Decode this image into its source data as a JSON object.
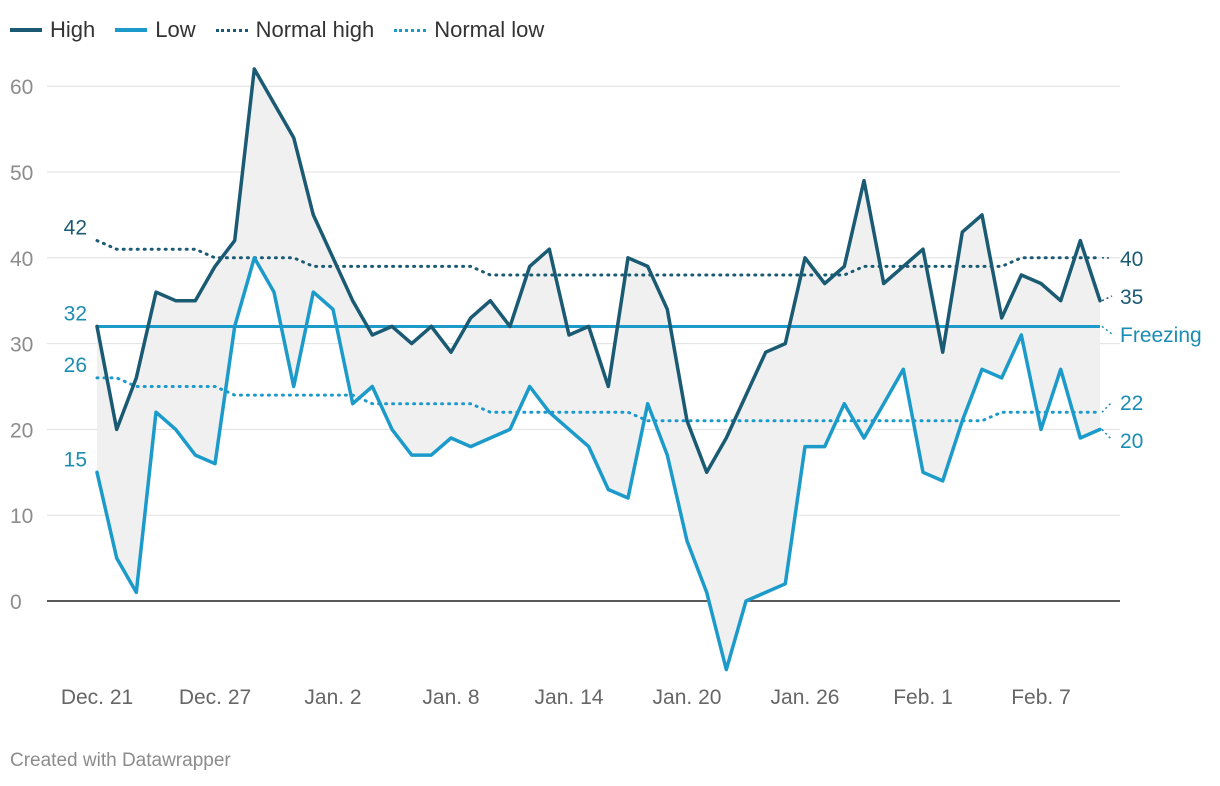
{
  "legend": [
    {
      "name": "High",
      "color": "#1a5a73",
      "style": "solid"
    },
    {
      "name": "Low",
      "color": "#1c9bcb",
      "style": "solid"
    },
    {
      "name": "Normal high",
      "color": "#1a5a73",
      "style": "dotted"
    },
    {
      "name": "Normal low",
      "color": "#1c9bcb",
      "style": "dotted"
    }
  ],
  "credit": "Created with Datawrapper",
  "chart_data": {
    "type": "line",
    "title": "",
    "xlabel": "",
    "ylabel": "",
    "ylim": [
      -8,
      63
    ],
    "yticks": [
      0,
      10,
      20,
      30,
      40,
      50,
      60
    ],
    "xlim": [
      0,
      51
    ],
    "x_tick_labels": [
      {
        "index": 0,
        "label": "Dec. 21"
      },
      {
        "index": 6,
        "label": "Dec. 27"
      },
      {
        "index": 12,
        "label": "Jan. 2"
      },
      {
        "index": 18,
        "label": "Jan. 8"
      },
      {
        "index": 24,
        "label": "Jan. 14"
      },
      {
        "index": 30,
        "label": "Jan. 20"
      },
      {
        "index": 36,
        "label": "Jan. 26"
      },
      {
        "index": 42,
        "label": "Feb. 1"
      },
      {
        "index": 48,
        "label": "Feb. 7"
      }
    ],
    "series": [
      {
        "name": "High",
        "color": "#1a5a73",
        "style": "solid",
        "values": [
          32,
          20,
          26,
          36,
          35,
          35,
          39,
          42,
          62,
          58,
          54,
          45,
          40,
          35,
          31,
          32,
          30,
          32,
          29,
          33,
          35,
          32,
          39,
          41,
          31,
          32,
          25,
          40,
          39,
          34,
          21,
          15,
          19,
          24,
          29,
          30,
          40,
          37,
          39,
          49,
          37,
          39,
          41,
          29,
          43,
          45,
          33,
          38,
          37,
          35,
          42,
          35
        ]
      },
      {
        "name": "Low",
        "color": "#1c9bcb",
        "style": "solid",
        "values": [
          15,
          5,
          1,
          22,
          20,
          17,
          16,
          32,
          40,
          36,
          25,
          36,
          34,
          23,
          25,
          20,
          17,
          17,
          19,
          18,
          19,
          20,
          25,
          22,
          20,
          18,
          13,
          12,
          23,
          17,
          7,
          1,
          -8,
          0,
          1,
          2,
          18,
          18,
          23,
          19,
          23,
          27,
          15,
          14,
          21,
          27,
          26,
          31,
          20,
          27,
          19,
          20
        ]
      },
      {
        "name": "Normal high",
        "color": "#1a5a73",
        "style": "dotted",
        "values": [
          42,
          41,
          41,
          41,
          41,
          41,
          40,
          40,
          40,
          40,
          40,
          39,
          39,
          39,
          39,
          39,
          39,
          39,
          39,
          39,
          38,
          38,
          38,
          38,
          38,
          38,
          38,
          38,
          38,
          38,
          38,
          38,
          38,
          38,
          38,
          38,
          38,
          38,
          38,
          39,
          39,
          39,
          39,
          39,
          39,
          39,
          39,
          40,
          40,
          40,
          40,
          40
        ]
      },
      {
        "name": "Normal low",
        "color": "#1c9bcb",
        "style": "dotted",
        "values": [
          26,
          26,
          25,
          25,
          25,
          25,
          25,
          24,
          24,
          24,
          24,
          24,
          24,
          24,
          23,
          23,
          23,
          23,
          23,
          23,
          22,
          22,
          22,
          22,
          22,
          22,
          22,
          22,
          21,
          21,
          21,
          21,
          21,
          21,
          21,
          21,
          21,
          21,
          21,
          21,
          21,
          21,
          21,
          21,
          21,
          21,
          22,
          22,
          22,
          22,
          22,
          22
        ]
      }
    ],
    "reference_line": {
      "name": "Freezing",
      "value": 32,
      "color": "#1c9bcb"
    },
    "start_labels": [
      {
        "series": "Normal high",
        "text": "42"
      },
      {
        "series": "Freezing",
        "text": "32"
      },
      {
        "series": "Normal low",
        "text": "26"
      },
      {
        "series": "Low",
        "text": "15"
      }
    ],
    "end_labels": [
      {
        "series": "Normal high",
        "text": "40"
      },
      {
        "series": "High",
        "text": "35"
      },
      {
        "series": "Freezing",
        "text": "Freezing"
      },
      {
        "series": "Normal low",
        "text": "22"
      },
      {
        "series": "Low",
        "text": "20"
      }
    ]
  }
}
